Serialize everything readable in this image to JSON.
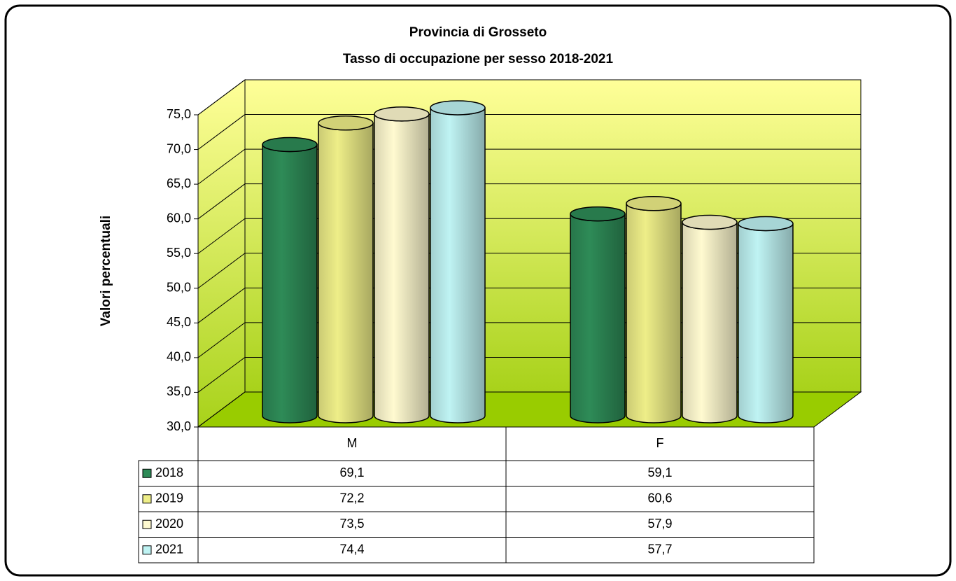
{
  "chart_data": {
    "type": "cylinder-bar",
    "title": "Provincia di Grosseto",
    "subtitle": "Tasso di occupazione per sesso  2018-2021",
    "y_label": "Valori percentuali",
    "categories": [
      "M",
      "F"
    ],
    "series": [
      {
        "name": "2018",
        "color": "#2e8b57",
        "values": [
          69.1,
          59.1
        ],
        "value_labels": [
          "69,1",
          "59,1"
        ]
      },
      {
        "name": "2019",
        "color": "#eeee88",
        "values": [
          72.2,
          60.6
        ],
        "value_labels": [
          "72,2",
          "60,6"
        ]
      },
      {
        "name": "2020",
        "color": "#fffad0",
        "values": [
          73.5,
          57.9
        ],
        "value_labels": [
          "73,5",
          "57,9"
        ]
      },
      {
        "name": "2021",
        "color": "#bff3f3",
        "values": [
          74.4,
          57.7
        ],
        "value_labels": [
          "74,4",
          "57,7"
        ]
      }
    ],
    "ylim": [
      30,
      75
    ],
    "yticks": [
      {
        "value": 30,
        "label": "30,0"
      },
      {
        "value": 35,
        "label": "35,0"
      },
      {
        "value": 40,
        "label": "40,0"
      },
      {
        "value": 45,
        "label": "45,0"
      },
      {
        "value": 50,
        "label": "50,0"
      },
      {
        "value": 55,
        "label": "55,0"
      },
      {
        "value": 60,
        "label": "60,0"
      },
      {
        "value": 65,
        "label": "65,0"
      },
      {
        "value": 70,
        "label": "70,0"
      },
      {
        "value": 75,
        "label": "75,0"
      }
    ],
    "grid": true
  }
}
